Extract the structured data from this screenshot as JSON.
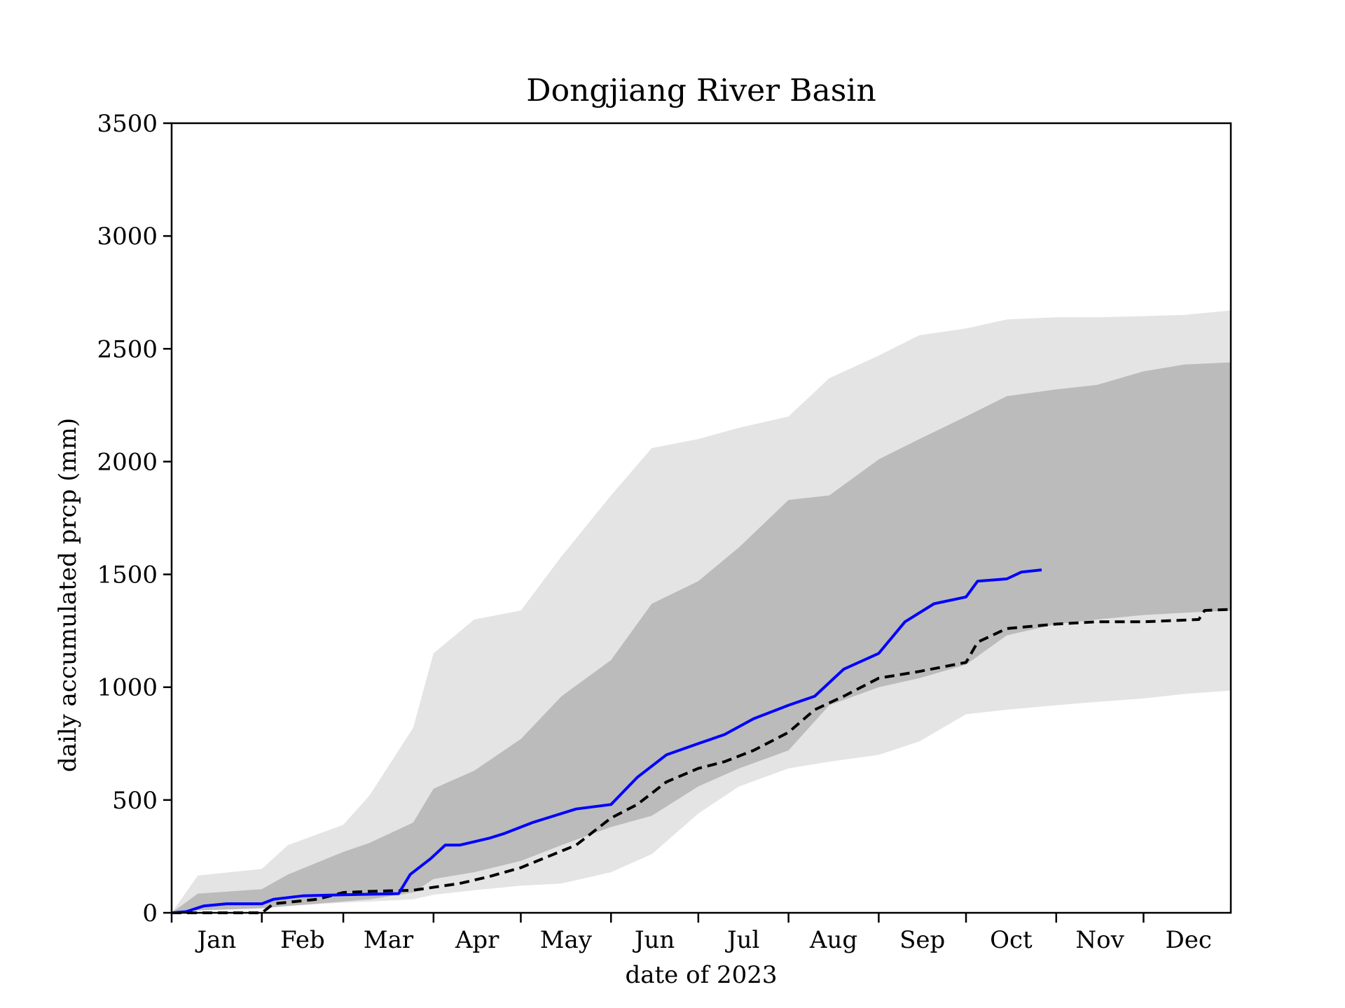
{
  "chart_data": {
    "type": "area",
    "title": "Dongjiang River Basin",
    "xlabel": "date of 2023",
    "ylabel": "daily accumulated prcp (mm)",
    "ylim": [
      0,
      3500
    ],
    "xlim": [
      "2023-01-01",
      "2023-12-31"
    ],
    "yticks": [
      0,
      500,
      1000,
      1500,
      2000,
      2500,
      3000,
      3500
    ],
    "month_ticks": [
      "Jan",
      "Feb",
      "Mar",
      "Apr",
      "May",
      "Jun",
      "Jul",
      "Aug",
      "Sep",
      "Oct",
      "Nov",
      "Dec"
    ],
    "grid": false,
    "legend": "none",
    "colors": {
      "outer_band": "#e4e4e4",
      "inner_band": "#bbbbbb",
      "blue_line": "#0000ff",
      "dashed_line": "#000000"
    },
    "bands": [
      {
        "x": [
          "2023-01-01",
          "2023-01-10",
          "2023-02-01",
          "2023-02-10",
          "2023-03-01",
          "2023-03-10",
          "2023-03-25",
          "2023-04-01",
          "2023-04-15",
          "2023-05-01",
          "2023-05-15",
          "2023-06-01",
          "2023-06-15",
          "2023-07-01",
          "2023-07-15",
          "2023-08-01",
          "2023-08-15",
          "2023-09-01",
          "2023-09-15",
          "2023-10-01",
          "2023-10-15",
          "2023-11-01",
          "2023-11-15",
          "2023-12-01",
          "2023-12-15",
          "2023-12-31"
        ],
        "lower": [
          0,
          15,
          25,
          30,
          45,
          50,
          60,
          80,
          100,
          120,
          130,
          180,
          260,
          440,
          560,
          640,
          670,
          700,
          760,
          880,
          900,
          920,
          935,
          950,
          970,
          985
        ],
        "upper": [
          0,
          165,
          195,
          300,
          390,
          520,
          820,
          1150,
          1300,
          1340,
          1580,
          1850,
          2060,
          2100,
          2150,
          2200,
          2370,
          2470,
          2560,
          2590,
          2630,
          2640,
          2640,
          2645,
          2650,
          2670
        ]
      },
      {
        "x": [
          "2023-01-01",
          "2023-01-10",
          "2023-02-01",
          "2023-02-10",
          "2023-03-01",
          "2023-03-10",
          "2023-03-25",
          "2023-04-01",
          "2023-04-15",
          "2023-05-01",
          "2023-05-15",
          "2023-06-01",
          "2023-06-15",
          "2023-07-01",
          "2023-07-15",
          "2023-08-01",
          "2023-08-15",
          "2023-09-01",
          "2023-09-15",
          "2023-10-01",
          "2023-10-15",
          "2023-11-01",
          "2023-11-15",
          "2023-12-01",
          "2023-12-15",
          "2023-12-31"
        ],
        "lower": [
          0,
          10,
          20,
          30,
          50,
          60,
          90,
          150,
          180,
          230,
          300,
          380,
          430,
          560,
          640,
          720,
          920,
          1000,
          1040,
          1100,
          1230,
          1280,
          1300,
          1320,
          1330,
          1340
        ],
        "upper": [
          0,
          85,
          105,
          170,
          270,
          310,
          400,
          550,
          630,
          770,
          960,
          1120,
          1370,
          1470,
          1620,
          1830,
          1850,
          2010,
          2100,
          2200,
          2290,
          2320,
          2340,
          2400,
          2430,
          2440
        ]
      }
    ],
    "series": [
      {
        "style": "solid",
        "x": [
          "2023-01-01",
          "2023-01-06",
          "2023-01-12",
          "2023-01-20",
          "2023-02-01",
          "2023-02-05",
          "2023-02-15",
          "2023-03-01",
          "2023-03-20",
          "2023-03-24",
          "2023-03-31",
          "2023-04-05",
          "2023-04-10",
          "2023-04-20",
          "2023-04-25",
          "2023-05-05",
          "2023-05-10",
          "2023-05-20",
          "2023-06-01",
          "2023-06-10",
          "2023-06-20",
          "2023-07-01",
          "2023-07-10",
          "2023-07-20",
          "2023-08-01",
          "2023-08-10",
          "2023-08-20",
          "2023-09-01",
          "2023-09-10",
          "2023-09-20",
          "2023-10-01",
          "2023-10-05",
          "2023-10-15",
          "2023-10-20",
          "2023-10-27"
        ],
        "values": [
          0,
          5,
          30,
          40,
          40,
          60,
          75,
          80,
          85,
          170,
          240,
          300,
          300,
          330,
          350,
          400,
          420,
          460,
          480,
          600,
          700,
          750,
          790,
          860,
          920,
          960,
          1080,
          1150,
          1290,
          1370,
          1400,
          1470,
          1480,
          1510,
          1520
        ]
      },
      {
        "style": "dashed",
        "x": [
          "2023-01-01",
          "2023-02-01",
          "2023-02-05",
          "2023-02-20",
          "2023-03-01",
          "2023-03-10",
          "2023-03-25",
          "2023-04-10",
          "2023-04-20",
          "2023-05-01",
          "2023-05-20",
          "2023-06-01",
          "2023-06-10",
          "2023-06-20",
          "2023-07-01",
          "2023-07-10",
          "2023-07-20",
          "2023-08-01",
          "2023-08-10",
          "2023-08-20",
          "2023-09-01",
          "2023-09-15",
          "2023-10-01",
          "2023-10-05",
          "2023-10-15",
          "2023-11-01",
          "2023-11-15",
          "2023-12-01",
          "2023-12-20",
          "2023-12-22",
          "2023-12-31"
        ],
        "values": [
          0,
          0,
          40,
          60,
          90,
          95,
          100,
          130,
          160,
          200,
          300,
          420,
          480,
          580,
          640,
          670,
          720,
          800,
          900,
          960,
          1040,
          1070,
          1110,
          1200,
          1260,
          1280,
          1290,
          1290,
          1300,
          1340,
          1345
        ]
      }
    ]
  }
}
